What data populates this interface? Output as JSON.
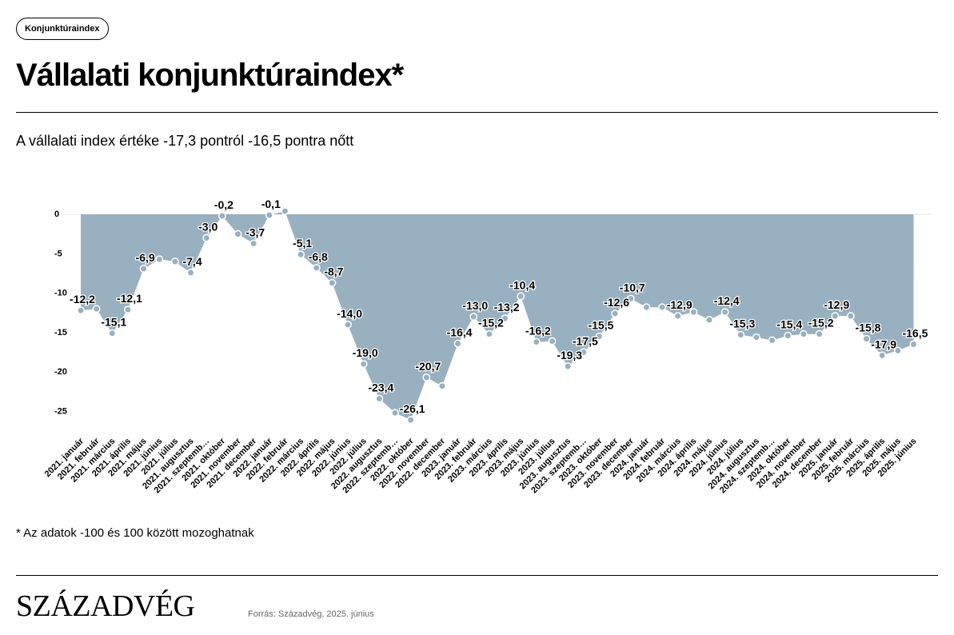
{
  "tag": {
    "label": "Konjunktúraindex"
  },
  "header": {
    "title": "Vállalati konjunktúraindex*",
    "subtitle": "A vállalati index értéke -17,3 pontról -16,5 pontra nőtt"
  },
  "footnote": "* Az adatok -100 és 100 között mozoghatnak",
  "brand": {
    "logo": "SZÁZADVÉG"
  },
  "source": "Forrás: Századvég, 2025. június",
  "colors": {
    "area": "#98b0bf",
    "point": "#98b0bf",
    "point_stroke": "#ffffff"
  },
  "chart_data": {
    "type": "area",
    "title": "Vállalati konjunktúraindex*",
    "ylim": [
      -27,
      0.5
    ],
    "yticks": [
      0,
      -5,
      -10,
      -15,
      -20,
      -25
    ],
    "grid": false,
    "legend": "none",
    "x": [
      "2021. január",
      "2021. február",
      "2021. március",
      "2021. április",
      "2021. május",
      "2021. június",
      "2021. július",
      "2021. augusztus",
      "2021. szeptemb…",
      "2021. október",
      "2021. november",
      "2021. december",
      "2022. január",
      "2022. február",
      "2022. március",
      "2022. április",
      "2022. május",
      "2022. június",
      "2022. július",
      "2022. augusztus",
      "2022. szeptemb…",
      "2022. október",
      "2022. november",
      "2022. december",
      "2023. január",
      "2023. február",
      "2023. március",
      "2023. április",
      "2023. május",
      "2023. június",
      "2023. július",
      "2023. augusztus",
      "2023. szeptemb…",
      "2023. október",
      "2023. november",
      "2023. december",
      "2024. január",
      "2024. február",
      "2024. március",
      "2024. április",
      "2024. május",
      "2024. június",
      "2024. július",
      "2024. augusztus",
      "2024. szeptemb…",
      "2024. október",
      "2024. november",
      "2024. december",
      "2025. január",
      "2025. február",
      "2025. március",
      "2025. április",
      "2025. május",
      "2025. június"
    ],
    "values": [
      -12.2,
      -12.0,
      -15.1,
      -12.1,
      -6.9,
      -5.7,
      -6.0,
      -7.4,
      -3.0,
      -0.2,
      -2.5,
      -3.7,
      -0.1,
      0.4,
      -5.1,
      -6.8,
      -8.7,
      -14.0,
      -19.0,
      -23.4,
      -25.2,
      -26.1,
      -20.7,
      -21.8,
      -16.4,
      -13.0,
      -15.2,
      -13.2,
      -10.4,
      -16.2,
      -16.1,
      -19.3,
      -17.5,
      -15.5,
      -12.6,
      -10.7,
      -11.8,
      -11.8,
      -12.9,
      -12.4,
      -13.4,
      -12.4,
      -15.3,
      -15.6,
      -16.0,
      -15.4,
      -15.2,
      -15.2,
      -12.9,
      -12.9,
      -15.8,
      -17.9,
      -17.3,
      -16.5
    ],
    "data_labels": [
      {
        "index": 0,
        "text": "-12,2"
      },
      {
        "index": 2,
        "text": "-15,1"
      },
      {
        "index": 3,
        "text": "-12,1"
      },
      {
        "index": 4,
        "text": "-6,9"
      },
      {
        "index": 7,
        "text": "-7,4"
      },
      {
        "index": 8,
        "text": "-3,0"
      },
      {
        "index": 9,
        "text": "-0,2"
      },
      {
        "index": 11,
        "text": "-3,7"
      },
      {
        "index": 12,
        "text": "-0,1"
      },
      {
        "index": 14,
        "text": "-5,1"
      },
      {
        "index": 15,
        "text": "-6,8"
      },
      {
        "index": 16,
        "text": "-8,7"
      },
      {
        "index": 17,
        "text": "-14,0"
      },
      {
        "index": 18,
        "text": "-19,0"
      },
      {
        "index": 19,
        "text": "-23,4"
      },
      {
        "index": 21,
        "text": "-26,1"
      },
      {
        "index": 22,
        "text": "-20,7"
      },
      {
        "index": 24,
        "text": "-16,4"
      },
      {
        "index": 25,
        "text": "-13,0"
      },
      {
        "index": 26,
        "text": "-15,2"
      },
      {
        "index": 27,
        "text": "-13,2"
      },
      {
        "index": 28,
        "text": "-10,4"
      },
      {
        "index": 29,
        "text": "-16,2"
      },
      {
        "index": 31,
        "text": "-19,3"
      },
      {
        "index": 32,
        "text": "-17,5"
      },
      {
        "index": 33,
        "text": "-15,5"
      },
      {
        "index": 34,
        "text": "-12,6"
      },
      {
        "index": 35,
        "text": "-10,7"
      },
      {
        "index": 38,
        "text": "-12,9"
      },
      {
        "index": 41,
        "text": "-12,4"
      },
      {
        "index": 42,
        "text": "-15,3"
      },
      {
        "index": 45,
        "text": "-15,4"
      },
      {
        "index": 47,
        "text": "-15,2"
      },
      {
        "index": 48,
        "text": "-12,9"
      },
      {
        "index": 50,
        "text": "-15,8"
      },
      {
        "index": 51,
        "text": "-17,9"
      },
      {
        "index": 53,
        "text": "-16,5"
      }
    ]
  }
}
